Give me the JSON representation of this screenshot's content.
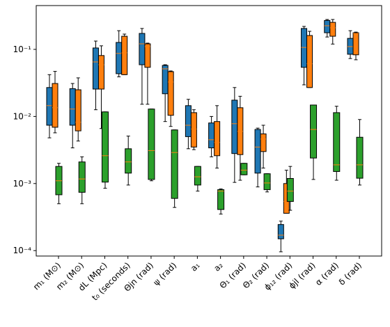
{
  "chart_data": {
    "type": "box",
    "categories": [
      "m₁ (M⊙)",
      "m₂ (M⊙)",
      "dL (Mpc)",
      "t₀ (seconds)",
      "Θjn (rad)",
      "ψ (rad)",
      "a₁",
      "a₂",
      "Θ₁ (rad)",
      "Θ₂ (rad)",
      "ϕ₁₂ (rad)",
      "ϕjl (rad)",
      "α (rad)",
      "δ (rad)"
    ],
    "log_y": true,
    "ylim": [
      8.3e-05,
      0.45
    ],
    "yticks": [
      {
        "value": 0.0001,
        "label": "10⁻⁴"
      },
      {
        "value": 0.001,
        "label": "10⁻³"
      },
      {
        "value": 0.01,
        "label": "10⁻²"
      },
      {
        "value": 0.1,
        "label": "10⁻¹"
      }
    ],
    "median_color": "#ff7f0e",
    "series": [
      {
        "color": "#1f77b4",
        "whislo": [
          0.0048,
          0.0034,
          0.0126,
          0.039,
          0.0152,
          0.0084,
          0.0033,
          0.0025,
          0.00104,
          0.00089,
          9.6e-05,
          0.0296,
          0.153,
          0.073
        ],
        "q1": [
          0.0074,
          0.0074,
          0.0256,
          0.0434,
          0.059,
          0.0218,
          0.005,
          0.0034,
          0.0028,
          0.00143,
          0.00015,
          0.054,
          0.177,
          0.0846
        ],
        "median": [
          0.0145,
          0.0129,
          0.065,
          0.087,
          0.121,
          0.0513,
          0.0074,
          0.0045,
          0.0078,
          0.0035,
          0.00017,
          0.107,
          0.225,
          0.11
        ],
        "q3": [
          0.027,
          0.026,
          0.105,
          0.127,
          0.173,
          0.0577,
          0.0145,
          0.008,
          0.0175,
          0.0064,
          0.000245,
          0.205,
          0.27,
          0.146
        ],
        "whishi": [
          0.042,
          0.031,
          0.133,
          0.19,
          0.205,
          0.059,
          0.018,
          0.01,
          0.027,
          0.0067,
          0.000275,
          0.22,
          0.279,
          0.19
        ]
      },
      {
        "color": "#ff7f0e",
        "whislo": [
          0.0057,
          0.0043,
          0.0066,
          0.042,
          0.0152,
          0.0071,
          0.0032,
          0.0017,
          0.00112,
          0.0017,
          0.00036,
          0.027,
          0.12,
          0.07
        ],
        "q1": [
          0.0069,
          0.0061,
          0.0256,
          0.042,
          0.054,
          0.0104,
          0.0035,
          0.0026,
          0.0027,
          0.003,
          0.00036,
          0.027,
          0.157,
          0.083
        ],
        "median": [
          0.0135,
          0.0082,
          0.059,
          0.089,
          0.11,
          0.0326,
          0.0065,
          0.0041,
          0.006,
          0.0046,
          0.00054,
          0.061,
          0.21,
          0.173
        ],
        "q3": [
          0.031,
          0.025,
          0.081,
          0.157,
          0.121,
          0.0466,
          0.0114,
          0.0084,
          0.0135,
          0.0055,
          0.001,
          0.161,
          0.253,
          0.177
        ],
        "whishi": [
          0.047,
          0.0376,
          0.113,
          0.169,
          0.124,
          0.0477,
          0.0126,
          0.0145,
          0.02,
          0.0074,
          0.00158,
          0.186,
          0.279,
          0.181
        ]
      },
      {
        "color": "#2ca02c",
        "whislo": [
          0.0005,
          0.0005,
          0.00085,
          0.00095,
          0.0011,
          0.00044,
          0.00077,
          0.00035,
          0.00135,
          0.00075,
          0.0004,
          0.00115,
          0.00112,
          0.00095
        ],
        "q1": [
          0.00068,
          0.00074,
          0.00105,
          0.00143,
          0.00115,
          0.0006,
          0.00095,
          0.00041,
          0.00135,
          0.00081,
          0.00054,
          0.0024,
          0.00151,
          0.0012
        ],
        "median": [
          0.0011,
          0.00117,
          0.0026,
          0.0021,
          0.0031,
          0.0029,
          0.00126,
          0.00077,
          0.00158,
          0.00102,
          0.00077,
          0.0064,
          0.0019,
          0.0019
        ],
        "q3": [
          0.0018,
          0.0021,
          0.0117,
          0.0033,
          0.0129,
          0.0063,
          0.0018,
          0.00081,
          0.002,
          0.0014,
          0.00119,
          0.0148,
          0.0114,
          0.0049
        ],
        "whishi": [
          0.002,
          0.0025,
          0.0117,
          0.0051,
          0.0129,
          0.0063,
          0.0018,
          0.00083,
          0.002,
          0.0014,
          0.0018,
          0.0148,
          0.0142,
          0.009
        ]
      }
    ]
  }
}
